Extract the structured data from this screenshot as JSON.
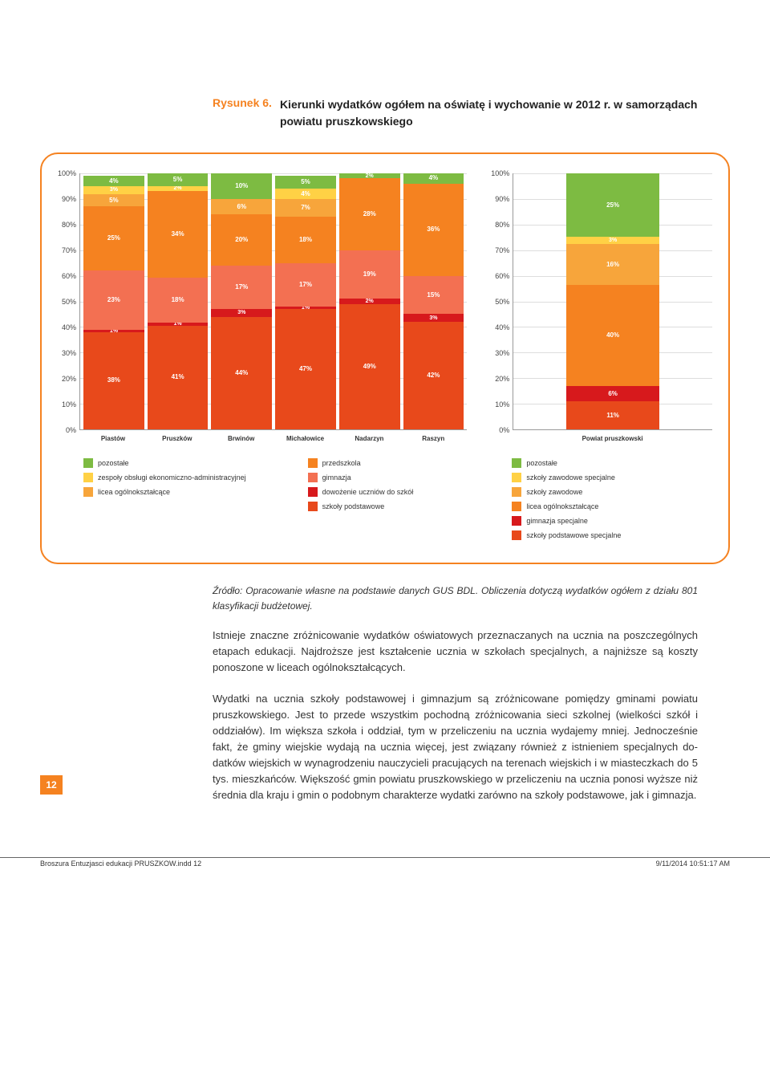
{
  "figure": {
    "number": "Rysunek 6.",
    "title": "Kierunki wydatków ogółem na oświatę i wychowanie w 2012 r. w samorządach powiatu pruszkowskiego"
  },
  "axis": {
    "ticks": [
      "100%",
      "90%",
      "80%",
      "70%",
      "60%",
      "50%",
      "40%",
      "30%",
      "20%",
      "10%",
      "0%"
    ]
  },
  "colors": {
    "c_pozostale": "#7dbb42",
    "c_zespoly": "#ffd145",
    "c_licea": "#f7a53b",
    "c_przedszkola": "#f58220",
    "c_gimnazja": "#f37052",
    "c_dowozenie": "#d7191c",
    "c_podstawowe": "#e8491b",
    "c_szk_zaw_spec": "#ffd145",
    "c_szk_zawodowe": "#f7a53b",
    "c_licea_og": "#f58220",
    "c_gim_spec": "#d7191c",
    "c_podspec": "#e8491b"
  },
  "chart_left": {
    "categories": [
      "Piastów",
      "Pruszków",
      "Brwinów",
      "Michałowice",
      "Nadarzyn",
      "Raszyn"
    ],
    "legend1": [
      {
        "key": "c_pozostale",
        "label": "pozostałe"
      },
      {
        "key": "c_zespoly",
        "label": "zespoły obsługi ekonomiczno-administracyjnej"
      },
      {
        "key": "c_licea",
        "label": "licea ogólnokształcące"
      }
    ],
    "legend2": [
      {
        "key": "c_przedszkola",
        "label": "przedszkola"
      },
      {
        "key": "c_gimnazja",
        "label": "gimnazja"
      },
      {
        "key": "c_dowozenie",
        "label": "dowożenie uczniów do szkół"
      },
      {
        "key": "c_podstawowe",
        "label": "szkoły podstawowe"
      }
    ],
    "bars": [
      [
        {
          "v": 38,
          "c": "c_podstawowe",
          "l": "38%"
        },
        {
          "v": 1,
          "c": "c_dowozenie",
          "l": "1%"
        },
        {
          "v": 23,
          "c": "c_gimnazja",
          "l": "23%"
        },
        {
          "v": 25,
          "c": "c_przedszkola",
          "l": "25%"
        },
        {
          "v": 5,
          "c": "c_licea",
          "l": "5%"
        },
        {
          "v": 3,
          "c": "c_zespoly",
          "l": "3%"
        },
        {
          "v": 4,
          "c": "c_pozostale",
          "l": "4%"
        }
      ],
      [
        {
          "v": 41,
          "c": "c_podstawowe",
          "l": "41%"
        },
        {
          "v": 1,
          "c": "c_dowozenie",
          "l": "1%"
        },
        {
          "v": 18,
          "c": "c_gimnazja",
          "l": "18%"
        },
        {
          "v": 34,
          "c": "c_przedszkola",
          "l": "34%"
        },
        {
          "v": 2,
          "c": "c_zespoly",
          "l": "2%"
        },
        {
          "v": 5,
          "c": "c_pozostale",
          "l": "5%"
        }
      ],
      [
        {
          "v": 44,
          "c": "c_podstawowe",
          "l": "44%"
        },
        {
          "v": 3,
          "c": "c_dowozenie",
          "l": "3%"
        },
        {
          "v": 17,
          "c": "c_gimnazja",
          "l": "17%"
        },
        {
          "v": 20,
          "c": "c_przedszkola",
          "l": "20%"
        },
        {
          "v": 6,
          "c": "c_licea",
          "l": "6%"
        },
        {
          "v": 10,
          "c": "c_pozostale",
          "l": "10%"
        }
      ],
      [
        {
          "v": 47,
          "c": "c_podstawowe",
          "l": "47%"
        },
        {
          "v": 1,
          "c": "c_dowozenie",
          "l": "1%"
        },
        {
          "v": 17,
          "c": "c_gimnazja",
          "l": "17%"
        },
        {
          "v": 18,
          "c": "c_przedszkola",
          "l": "18%"
        },
        {
          "v": 7,
          "c": "c_licea",
          "l": "7%"
        },
        {
          "v": 4,
          "c": "c_zespoly",
          "l": "4%"
        },
        {
          "v": 5,
          "c": "c_pozostale",
          "l": "5%"
        }
      ],
      [
        {
          "v": 49,
          "c": "c_podstawowe",
          "l": "49%"
        },
        {
          "v": 2,
          "c": "c_dowozenie",
          "l": "2%"
        },
        {
          "v": 19,
          "c": "c_gimnazja",
          "l": "19%"
        },
        {
          "v": 28,
          "c": "c_przedszkola",
          "l": "28%"
        },
        {
          "v": 2,
          "c": "c_pozostale",
          "l": "2%"
        }
      ],
      [
        {
          "v": 42,
          "c": "c_podstawowe",
          "l": "42%"
        },
        {
          "v": 3,
          "c": "c_dowozenie",
          "l": "3%"
        },
        {
          "v": 15,
          "c": "c_gimnazja",
          "l": "15%"
        },
        {
          "v": 36,
          "c": "c_przedszkola",
          "l": "36%"
        },
        {
          "v": 4,
          "c": "c_pozostale",
          "l": "4%"
        }
      ]
    ]
  },
  "chart_right": {
    "categories": [
      "Powiat pruszkowski"
    ],
    "legend3": [
      {
        "key": "c_pozostale",
        "label": "pozostałe"
      },
      {
        "key": "c_szk_zaw_spec",
        "label": "szkoły zawodowe specjalne"
      },
      {
        "key": "c_szk_zawodowe",
        "label": "szkoły zawodowe"
      },
      {
        "key": "c_licea_og",
        "label": "licea ogólnokształcące"
      },
      {
        "key": "c_gim_spec",
        "label": "gimnazja specjalne"
      },
      {
        "key": "c_podspec",
        "label": "szkoły podstawowe specjalne"
      }
    ],
    "bars": [
      [
        {
          "v": 11,
          "c": "c_podspec",
          "l": "11%"
        },
        {
          "v": 6,
          "c": "c_gim_spec",
          "l": "6%"
        },
        {
          "v": 40,
          "c": "c_licea_og",
          "l": "40%"
        },
        {
          "v": 16,
          "c": "c_szk_zawodowe",
          "l": "16%"
        },
        {
          "v": 3,
          "c": "c_szk_zaw_spec",
          "l": "3%"
        },
        {
          "v": 25,
          "c": "c_pozostale",
          "l": "25%"
        }
      ]
    ]
  },
  "text": {
    "source": "Źródło: Opracowanie własne na podstawie danych GUS BDL. Obliczenia dotyczą wydatków ogółem z działu 801 klasyfikacji budżetowej.",
    "p1": "Istnieje znaczne zróżnicowanie wydatków oświatowych przeznaczanych na ucznia na poszczegól­nych etapach edukacji. Najdroższe jest kształcenie ucznia w szkołach specjalnych, a najniższe są kosz­ty ponoszone w liceach ogólnokształcących.",
    "p2": "Wydatki na ucznia szkoły podstawowej i gimnazjum są zróżnicowane pomiędzy gminami powiatu pruszkowskiego. Jest to przede wszystkim pochodną zróżnicowania sieci szkolnej (wielkości szkół i oddziałów). Im większa szkoła i oddział, tym w przeliczeniu na ucznia wydajemy mniej. Jednocześnie fakt, że gminy wiejskie wydają na ucznia więcej, jest związany również z istnieniem specjalnych do­datków wiejskich w wynagrodzeniu nauczycieli pracujących na terenach wiejskich i w miasteczkach do 5 tys. mieszkańców. Większość gmin powiatu pruszkowskiego w przeliczeniu na ucznia ponosi wyższe niż średnia dla kraju i gmin o podobnym charakterze wydatki zarówno na szkoły podstawo­we, jak i gimnazja."
  },
  "page_number": "12",
  "footer": {
    "left": "Broszura Entuzjasci edukacji PRUSZKOW.indd   12",
    "right": "9/11/2014   10:51:17 AM"
  }
}
